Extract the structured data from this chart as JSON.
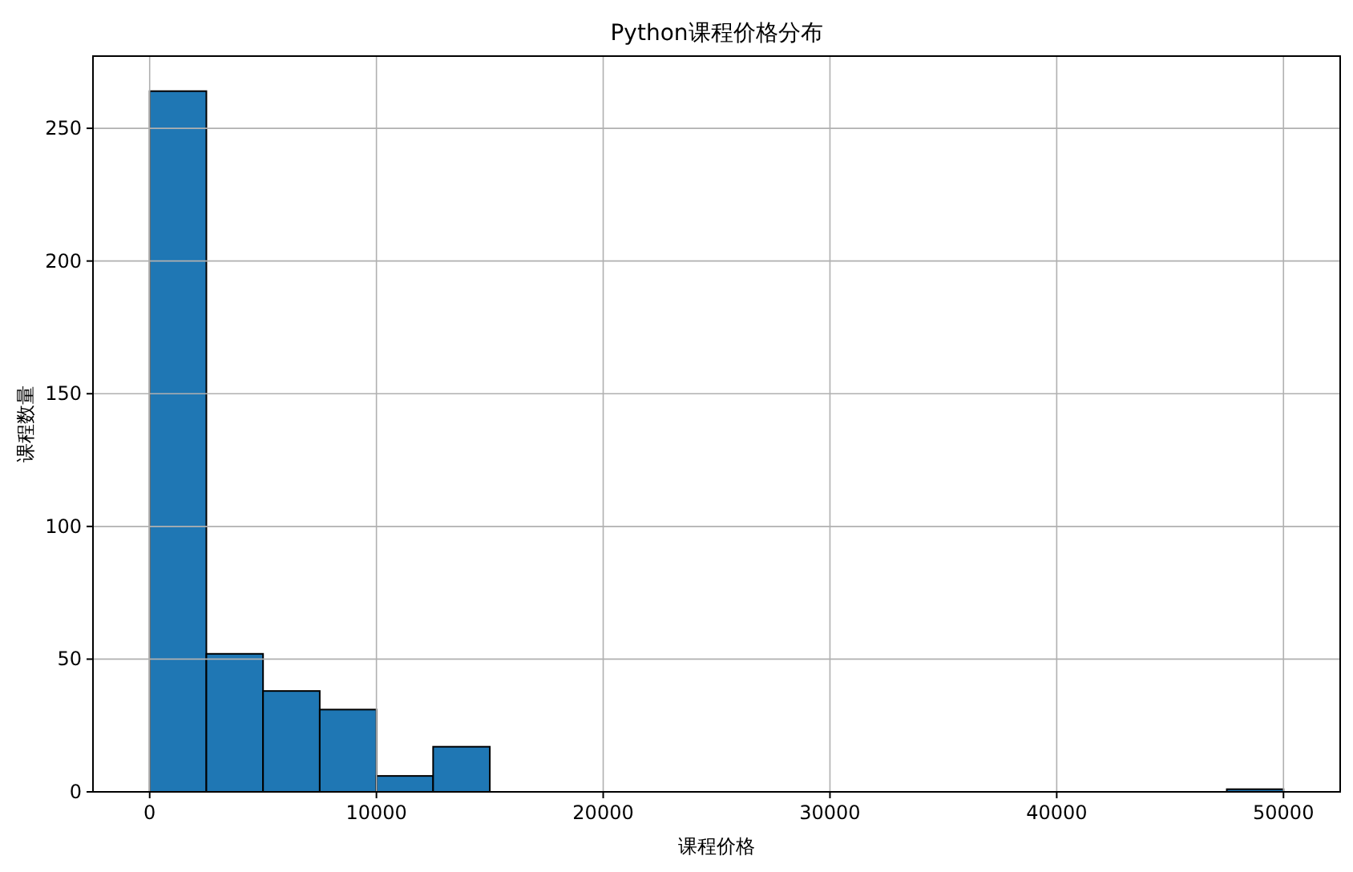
{
  "chart_data": {
    "type": "histogram",
    "title": "Python课程价格分布",
    "xlabel": "课程价格",
    "ylabel": "课程数量",
    "bins": [
      0,
      2500,
      5000,
      7500,
      10000,
      12500,
      15000,
      17500,
      20000,
      22500,
      25000,
      27500,
      30000,
      32500,
      35000,
      37500,
      40000,
      42500,
      45000,
      47500,
      50000
    ],
    "values": [
      264,
      52,
      38,
      31,
      6,
      17,
      0,
      0,
      0,
      0,
      0,
      0,
      0,
      0,
      0,
      0,
      0,
      0,
      0,
      1
    ],
    "color": "#1f77b4",
    "xlim": [
      -2500,
      52500
    ],
    "ylim": [
      0,
      277.2
    ],
    "xticks": [
      0,
      10000,
      20000,
      30000,
      40000,
      50000
    ],
    "yticks": [
      0,
      50,
      100,
      150,
      200,
      250
    ],
    "grid": true
  }
}
